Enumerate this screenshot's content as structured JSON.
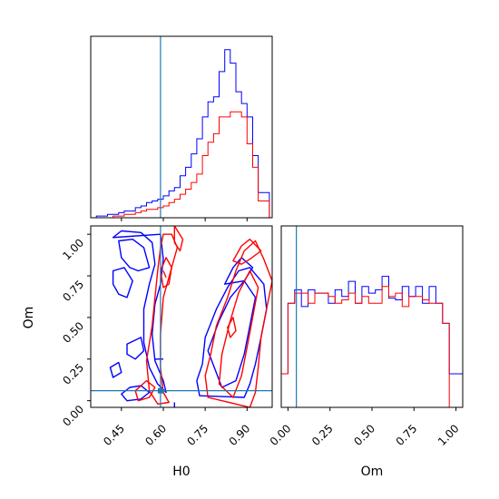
{
  "chart_data": [
    {
      "type": "histogram",
      "xlabel": "",
      "ylabel": "",
      "xlim": [
        0.34,
        0.99
      ],
      "ylim": [
        0,
        1
      ],
      "reference_x": 0.59,
      "bin_edges": [
        0.34,
        0.36,
        0.38,
        0.4,
        0.42,
        0.44,
        0.46,
        0.48,
        0.5,
        0.52,
        0.54,
        0.56,
        0.58,
        0.6,
        0.62,
        0.64,
        0.66,
        0.68,
        0.7,
        0.72,
        0.74,
        0.76,
        0.78,
        0.8,
        0.82,
        0.84,
        0.86,
        0.88,
        0.9,
        0.92,
        0.94,
        0.96,
        0.98
      ],
      "series": [
        {
          "color": "#0000ff",
          "values": [
            0.0,
            0.01,
            0.01,
            0.02,
            0.02,
            0.03,
            0.04,
            0.04,
            0.06,
            0.07,
            0.09,
            0.1,
            0.11,
            0.13,
            0.16,
            0.18,
            0.25,
            0.3,
            0.38,
            0.47,
            0.6,
            0.69,
            0.72,
            0.87,
            1.0,
            0.92,
            0.75,
            0.68,
            0.6,
            0.37,
            0.15,
            0.15
          ]
        },
        {
          "color": "#ff0000",
          "values": [
            0.0,
            0.0,
            0.0,
            0.0,
            0.01,
            0.01,
            0.02,
            0.02,
            0.03,
            0.04,
            0.05,
            0.05,
            0.06,
            0.07,
            0.09,
            0.11,
            0.14,
            0.17,
            0.21,
            0.26,
            0.37,
            0.45,
            0.5,
            0.6,
            0.6,
            0.63,
            0.63,
            0.6,
            0.44,
            0.3,
            0.1,
            0.1
          ]
        }
      ]
    },
    {
      "type": "contour",
      "xlabel": "H0",
      "ylabel": "Om",
      "xlim": [
        0.34,
        0.99
      ],
      "ylim": [
        -0.04,
        1.05
      ],
      "xticks": [
        "0.45",
        "0.60",
        "0.75",
        "0.90"
      ],
      "yticks": [
        "0.00",
        "0.25",
        "0.50",
        "0.75",
        "1.00"
      ],
      "reference_point": [
        0.59,
        0.06
      ],
      "series": [
        {
          "color": "#0000ff",
          "contours": [
            [
              [
                0.42,
                0.98
              ],
              [
                0.45,
                1.02
              ],
              [
                0.52,
                1.01
              ],
              [
                0.56,
                0.95
              ],
              [
                0.57,
                0.82
              ],
              [
                0.55,
                0.7
              ],
              [
                0.53,
                0.55
              ],
              [
                0.53,
                0.35
              ],
              [
                0.55,
                0.2
              ],
              [
                0.58,
                0.1
              ],
              [
                0.61,
                0.05
              ],
              [
                0.6,
                0.12
              ],
              [
                0.57,
                0.24
              ],
              [
                0.56,
                0.4
              ],
              [
                0.57,
                0.58
              ],
              [
                0.59,
                0.7
              ],
              [
                0.6,
                0.85
              ],
              [
                0.59,
                1.0
              ]
            ],
            [
              [
                0.44,
                0.96
              ],
              [
                0.49,
                0.97
              ],
              [
                0.53,
                0.92
              ],
              [
                0.55,
                0.8
              ],
              [
                0.51,
                0.78
              ],
              [
                0.48,
                0.8
              ],
              [
                0.45,
                0.86
              ]
            ],
            [
              [
                0.42,
                0.78
              ],
              [
                0.46,
                0.8
              ],
              [
                0.49,
                0.72
              ],
              [
                0.47,
                0.62
              ],
              [
                0.44,
                0.64
              ],
              [
                0.42,
                0.7
              ]
            ],
            [
              [
                0.47,
                0.34
              ],
              [
                0.52,
                0.38
              ],
              [
                0.53,
                0.3
              ],
              [
                0.5,
                0.25
              ],
              [
                0.47,
                0.28
              ]
            ],
            [
              [
                0.41,
                0.2
              ],
              [
                0.44,
                0.23
              ],
              [
                0.45,
                0.17
              ],
              [
                0.42,
                0.14
              ]
            ],
            [
              [
                0.45,
                0.04
              ],
              [
                0.48,
                0.08
              ],
              [
                0.52,
                0.09
              ],
              [
                0.55,
                0.05
              ],
              [
                0.52,
                0.01
              ],
              [
                0.47,
                0.0
              ]
            ],
            [
              [
                0.73,
                0.03
              ],
              [
                0.72,
                0.12
              ],
              [
                0.74,
                0.22
              ],
              [
                0.75,
                0.38
              ],
              [
                0.79,
                0.55
              ],
              [
                0.83,
                0.68
              ],
              [
                0.87,
                0.78
              ],
              [
                0.91,
                0.8
              ],
              [
                0.96,
                0.7
              ],
              [
                0.97,
                0.55
              ],
              [
                0.95,
                0.38
              ],
              [
                0.93,
                0.22
              ],
              [
                0.91,
                0.1
              ],
              [
                0.89,
                0.02
              ]
            ],
            [
              [
                0.76,
                0.3
              ],
              [
                0.8,
                0.48
              ],
              [
                0.84,
                0.62
              ],
              [
                0.89,
                0.72
              ],
              [
                0.93,
                0.62
              ],
              [
                0.91,
                0.45
              ],
              [
                0.89,
                0.28
              ],
              [
                0.86,
                0.12
              ],
              [
                0.81,
                0.08
              ]
            ],
            [
              [
                0.82,
                0.7
              ],
              [
                0.85,
                0.8
              ],
              [
                0.88,
                0.86
              ],
              [
                0.92,
                0.8
              ],
              [
                0.89,
                0.72
              ]
            ]
          ]
        },
        {
          "color": "#ff0000",
          "contours": [
            [
              [
                0.63,
                1.0
              ],
              [
                0.65,
                0.92
              ],
              [
                0.63,
                0.8
              ],
              [
                0.6,
                0.62
              ],
              [
                0.59,
                0.4
              ],
              [
                0.59,
                0.2
              ],
              [
                0.6,
                0.05
              ],
              [
                0.62,
                -0.01
              ],
              [
                0.58,
                -0.02
              ],
              [
                0.55,
                0.06
              ],
              [
                0.54,
                0.24
              ],
              [
                0.56,
                0.45
              ],
              [
                0.57,
                0.62
              ],
              [
                0.58,
                0.78
              ],
              [
                0.59,
                0.92
              ],
              [
                0.6,
                1.0
              ]
            ],
            [
              [
                0.61,
                0.86
              ],
              [
                0.63,
                0.8
              ],
              [
                0.62,
                0.7
              ],
              [
                0.6,
                0.68
              ],
              [
                0.59,
                0.78
              ]
            ],
            [
              [
                0.64,
                1.05
              ],
              [
                0.67,
                0.97
              ],
              [
                0.66,
                0.9
              ],
              [
                0.64,
                0.95
              ]
            ],
            [
              [
                0.76,
                0.02
              ],
              [
                0.75,
                0.15
              ],
              [
                0.77,
                0.28
              ],
              [
                0.79,
                0.45
              ],
              [
                0.83,
                0.62
              ],
              [
                0.86,
                0.78
              ],
              [
                0.89,
                0.9
              ],
              [
                0.93,
                0.96
              ],
              [
                0.96,
                0.85
              ],
              [
                0.99,
                0.72
              ],
              [
                0.97,
                0.55
              ],
              [
                0.95,
                0.38
              ],
              [
                0.94,
                0.2
              ],
              [
                0.93,
                0.05
              ],
              [
                0.91,
                -0.04
              ]
            ],
            [
              [
                0.8,
                0.1
              ],
              [
                0.81,
                0.28
              ],
              [
                0.84,
                0.48
              ],
              [
                0.87,
                0.65
              ],
              [
                0.91,
                0.78
              ],
              [
                0.94,
                0.68
              ],
              [
                0.92,
                0.5
              ],
              [
                0.9,
                0.32
              ],
              [
                0.88,
                0.15
              ],
              [
                0.85,
                0.02
              ]
            ],
            [
              [
                0.85,
                0.84
              ],
              [
                0.88,
                0.93
              ],
              [
                0.91,
                0.97
              ],
              [
                0.95,
                0.9
              ],
              [
                0.91,
                0.85
              ],
              [
                0.88,
                0.82
              ]
            ],
            [
              [
                0.83,
                0.44
              ],
              [
                0.85,
                0.5
              ],
              [
                0.86,
                0.42
              ],
              [
                0.84,
                0.38
              ]
            ],
            [
              [
                0.5,
                0.06
              ],
              [
                0.54,
                0.12
              ],
              [
                0.57,
                0.08
              ],
              [
                0.55,
                0.02
              ],
              [
                0.51,
                0.0
              ]
            ]
          ]
        }
      ],
      "stray_segments": [
        {
          "color": "#0000ff",
          "points": [
            [
              0.57,
              0.25
            ],
            [
              0.6,
              0.25
            ]
          ]
        },
        {
          "color": "#0000ff",
          "points": [
            [
              0.64,
              -0.04
            ],
            [
              0.64,
              -0.01
            ]
          ]
        },
        {
          "color": "#ff0000",
          "points": [
            [
              0.6,
              0.78
            ],
            [
              0.61,
              0.74
            ]
          ]
        }
      ]
    },
    {
      "type": "histogram",
      "xlabel": "Om",
      "ylabel": "",
      "xlim": [
        -0.04,
        1.04
      ],
      "ylim": [
        0,
        1
      ],
      "reference_x": 0.05,
      "xticks": [
        "0.00",
        "0.25",
        "0.50",
        "0.75",
        "1.00"
      ],
      "bin_edges": [
        -0.04,
        0.0,
        0.04,
        0.08,
        0.12,
        0.16,
        0.2,
        0.24,
        0.28,
        0.32,
        0.36,
        0.4,
        0.44,
        0.48,
        0.52,
        0.56,
        0.6,
        0.64,
        0.68,
        0.72,
        0.76,
        0.8,
        0.84,
        0.88,
        0.92,
        0.96,
        1.0,
        1.04
      ],
      "series": [
        {
          "color": "#0000ff",
          "values": [
            0.2,
            0.62,
            0.7,
            0.6,
            0.7,
            0.68,
            0.68,
            0.62,
            0.7,
            0.66,
            0.75,
            0.62,
            0.72,
            0.68,
            0.7,
            0.78,
            0.65,
            0.64,
            0.72,
            0.66,
            0.72,
            0.62,
            0.72,
            0.62,
            0.5,
            0.2,
            0.2
          ]
        },
        {
          "color": "#ff0000",
          "values": [
            0.2,
            0.62,
            0.68,
            0.68,
            0.62,
            0.68,
            0.68,
            0.66,
            0.62,
            0.64,
            0.68,
            0.62,
            0.66,
            0.62,
            0.62,
            0.72,
            0.66,
            0.68,
            0.6,
            0.66,
            0.66,
            0.64,
            0.62,
            0.62,
            0.5,
            0.0,
            0.0
          ]
        }
      ]
    }
  ]
}
